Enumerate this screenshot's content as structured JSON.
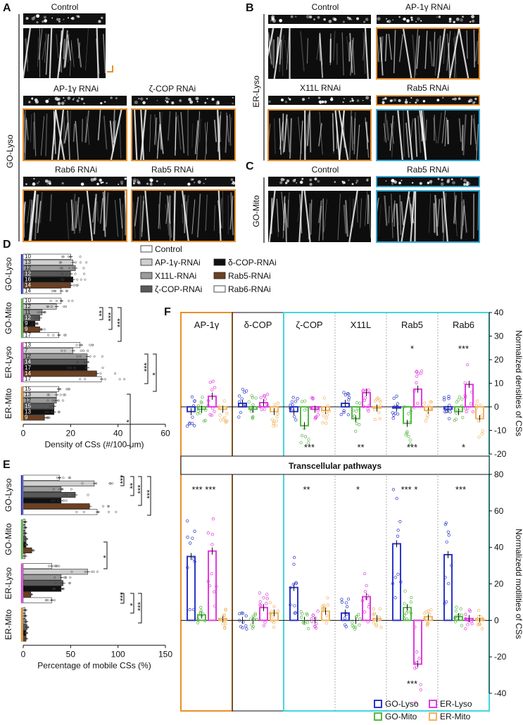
{
  "panels": {
    "A": {
      "letter": "A",
      "group": "GO-Lyso",
      "labels": [
        "Control",
        "AP-1γ RNAi",
        "ζ-COP RNAi",
        "Rab6 RNAi",
        "Rab5 RNAi"
      ]
    },
    "B": {
      "letter": "B",
      "group": "ER-Lyso",
      "labels": [
        "Control",
        "AP-1γ RNAi",
        "X11L RNAi",
        "Rab5 RNAi"
      ]
    },
    "C": {
      "letter": "C",
      "group": "GO-Mito",
      "labels": [
        "Control",
        "Rab5 RNAi"
      ]
    },
    "D": {
      "letter": "D"
    },
    "E": {
      "letter": "E"
    },
    "F": {
      "letter": "F"
    }
  },
  "colors": {
    "orange": "#e8902b",
    "blue": "#2ea8d8",
    "cyan": "#44d6dd",
    "go_lyso": "#2b37c8",
    "er_lyso": "#e23ce0",
    "go_mito": "#57b846",
    "er_mito": "#f1b35f",
    "magenta_bar": "#c42ed8"
  },
  "chart_data": [
    {
      "type": "bar",
      "panel": "D",
      "orientation": "horizontal",
      "xlabel": "Density of CSs (#/100 μm)",
      "xlim": [
        0,
        60
      ],
      "xticks": [
        "0",
        "20",
        "40",
        "60"
      ],
      "legend": [
        "Control",
        "AP-1γ-RNAi",
        "X11L-RNAi",
        "ζ-COP-RNAi",
        "δ-COP-RNAi",
        "Rab5-RNAi",
        "Rab6-RNAi"
      ],
      "groups": [
        {
          "name": "GO-Lyso",
          "bars": [
            {
              "c": "Control",
              "v": 20,
              "n": "10"
            },
            {
              "c": "AP-1γ-RNAi",
              "v": 21,
              "n": "13"
            },
            {
              "c": "X11L-RNAi",
              "v": 22,
              "n": "12"
            },
            {
              "c": "ζ-COP-RNAi",
              "v": 20,
              "n": "12"
            },
            {
              "c": "δ-COP-RNAi",
              "v": 21,
              "n": "16"
            },
            {
              "c": "Rab5-RNAi",
              "v": 20,
              "n": "14"
            },
            {
              "c": "Rab6-RNAi",
              "v": 16,
              "n": "14"
            }
          ]
        },
        {
          "name": "GO-Mito",
          "bars": [
            {
              "c": "Control",
              "v": 16,
              "n": "10"
            },
            {
              "c": "AP-1γ-RNAi",
              "v": 14,
              "n": "12"
            },
            {
              "c": "X11L-RNAi",
              "v": 8,
              "n": "11"
            },
            {
              "c": "ζ-COP-RNAi",
              "v": 7,
              "n": "12"
            },
            {
              "c": "δ-COP-RNAi",
              "v": 5,
              "n": "9"
            },
            {
              "c": "Rab5-RNAi",
              "v": 7,
              "n": "9"
            },
            {
              "c": "Rab6-RNAi",
              "v": 15,
              "n": "17"
            }
          ]
        },
        {
          "name": "ER-Lyso",
          "bars": [
            {
              "c": "Control",
              "v": 24,
              "n": "13"
            },
            {
              "c": "AP-1γ-RNAi",
              "v": 21,
              "n": "7"
            },
            {
              "c": "X11L-RNAi",
              "v": 27,
              "n": "12"
            },
            {
              "c": "ζ-COP-RNAi",
              "v": 27,
              "n": "14"
            },
            {
              "c": "δ-COP-RNAi",
              "v": 27,
              "n": "17"
            },
            {
              "c": "Rab5-RNAi",
              "v": 31,
              "n": "14"
            },
            {
              "c": "Rab6-RNAi",
              "v": 33,
              "n": "17"
            }
          ]
        },
        {
          "name": "ER-Mito",
          "bars": [
            {
              "c": "Control",
              "v": 15,
              "n": "15"
            },
            {
              "c": "AP-1γ-RNAi",
              "v": 14,
              "n": "13"
            },
            {
              "c": "X11L-RNAi",
              "v": 14,
              "n": "12"
            },
            {
              "c": "ζ-COP-RNAi",
              "v": 13,
              "n": "15"
            },
            {
              "c": "δ-COP-RNAi",
              "v": 13,
              "n": "13"
            },
            {
              "c": "Rab5-RNAi",
              "v": 9,
              "n": "9"
            }
          ]
        }
      ],
      "significance": [
        "**",
        "***",
        "***",
        "***",
        "*",
        "*"
      ]
    },
    {
      "type": "bar",
      "panel": "E",
      "orientation": "horizontal",
      "xlabel": "Percentage of mobile CSs (%)",
      "xlim": [
        0,
        150
      ],
      "xticks": [
        "0",
        "50",
        "100",
        "150"
      ],
      "groups": [
        {
          "name": "GO-Lyso",
          "bars": [
            {
              "c": "Control",
              "v": 38
            },
            {
              "c": "AP-1γ-RNAi",
              "v": 75
            },
            {
              "c": "X11L-RNAi",
              "v": 40
            },
            {
              "c": "ζ-COP-RNAi",
              "v": 55
            },
            {
              "c": "δ-COP-RNAi",
              "v": 40
            },
            {
              "c": "Rab5-RNAi",
              "v": 70
            },
            {
              "c": "Rab6-RNAi",
              "v": 78
            }
          ]
        },
        {
          "name": "GO-Mito",
          "bars": [
            {
              "c": "Control",
              "v": 2
            },
            {
              "c": "AP-1γ-RNAi",
              "v": 2
            },
            {
              "c": "X11L-RNAi",
              "v": 2
            },
            {
              "c": "ζ-COP-RNAi",
              "v": 3
            },
            {
              "c": "δ-COP-RNAi",
              "v": 3
            },
            {
              "c": "Rab5-RNAi",
              "v": 9
            },
            {
              "c": "Rab6-RNAi",
              "v": 2
            }
          ]
        },
        {
          "name": "ER-Lyso",
          "bars": [
            {
              "c": "Control",
              "v": 30
            },
            {
              "c": "AP-1γ-RNAi",
              "v": 68
            },
            {
              "c": "X11L-RNAi",
              "v": 40
            },
            {
              "c": "ζ-COP-RNAi",
              "v": 42
            },
            {
              "c": "δ-COP-RNAi",
              "v": 40
            },
            {
              "c": "Rab5-RNAi",
              "v": 8
            },
            {
              "c": "Rab6-RNAi",
              "v": 30
            }
          ]
        },
        {
          "name": "ER-Mito",
          "bars": [
            {
              "c": "Control",
              "v": 2
            },
            {
              "c": "AP-1γ-RNAi",
              "v": 2
            },
            {
              "c": "X11L-RNAi",
              "v": 3
            },
            {
              "c": "ζ-COP-RNAi",
              "v": 4
            },
            {
              "c": "δ-COP-RNAi",
              "v": 3
            },
            {
              "c": "Rab5-RNAi",
              "v": 3
            }
          ]
        }
      ],
      "significance": [
        "***",
        "**",
        "***",
        "***",
        "*",
        "***",
        "*",
        "***"
      ]
    },
    {
      "type": "bar",
      "panel": "F",
      "subtitle": "Transcellular pathways",
      "categories": [
        "AP-1γ",
        "δ-COP",
        "ζ-COP",
        "X11L",
        "Rab5",
        "Rab6"
      ],
      "legend": [
        "GO-Lyso",
        "ER-Lyso",
        "GO-Mito",
        "ER-Mito"
      ],
      "top": {
        "ylabel": "Normalized densities of CSs",
        "ylim": [
          -20,
          40
        ],
        "yticks": [
          "-20",
          "-10",
          "0",
          "10",
          "20",
          "30",
          "40"
        ],
        "series": [
          {
            "name": "GO-Lyso",
            "values": [
              -2,
              1.5,
              -2,
              1.5,
              -0.5,
              -1
            ]
          },
          {
            "name": "GO-Mito",
            "values": [
              -1,
              -1,
              -8,
              -5,
              -7,
              -2
            ]
          },
          {
            "name": "ER-Lyso",
            "values": [
              4.5,
              1.8,
              -1,
              6,
              7.5,
              9.5
            ]
          },
          {
            "name": "ER-Mito",
            "values": [
              -1,
              -2,
              -1.5,
              -0.5,
              -1.5,
              -5
            ]
          }
        ],
        "stars_above": [
          "",
          "",
          "",
          "",
          "*",
          "***"
        ],
        "stars_below": [
          "",
          "",
          "***",
          "**",
          "***",
          "*"
        ]
      },
      "bottom": {
        "ylabel": "Normalizedd motilities of CSs",
        "ylim": [
          -40,
          80
        ],
        "yticks": [
          "-40",
          "-20",
          "0",
          "20",
          "40",
          "60",
          "80"
        ],
        "series": [
          {
            "name": "GO-Lyso",
            "values": [
              35,
              0,
              18,
              4,
              42,
              36
            ]
          },
          {
            "name": "GO-Mito",
            "values": [
              3,
              0,
              0,
              0,
              7,
              2
            ]
          },
          {
            "name": "ER-Lyso",
            "values": [
              38,
              7,
              0,
              13,
              -24,
              1
            ]
          },
          {
            "name": "ER-Mito",
            "values": [
              1,
              4,
              5,
              1,
              2,
              1
            ]
          }
        ],
        "stars_above": [
          "*** ***",
          "",
          "**",
          "*",
          "*** *",
          "***"
        ],
        "stars_below": [
          "",
          "",
          "",
          "",
          "***",
          ""
        ]
      }
    }
  ]
}
